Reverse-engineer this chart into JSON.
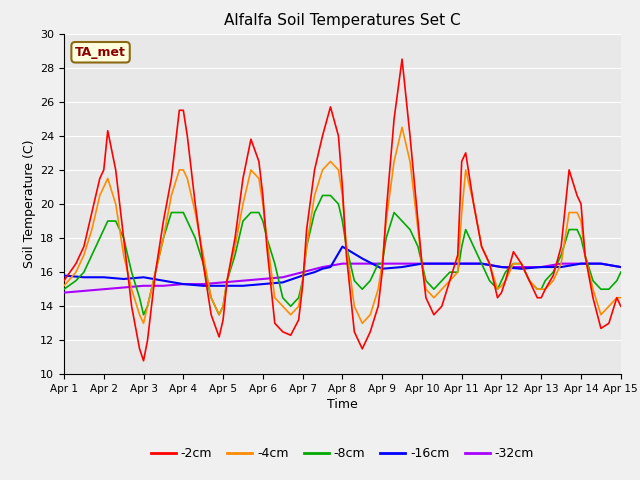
{
  "title": "Alfalfa Soil Temperatures Set C",
  "xlabel": "Time",
  "ylabel": "Soil Temperature (C)",
  "ylim": [
    10,
    30
  ],
  "xlim": [
    0,
    14
  ],
  "xtick_labels": [
    "Apr 1",
    "Apr 2",
    "Apr 3",
    "Apr 4",
    "Apr 5",
    "Apr 6",
    "Apr 7",
    "Apr 8",
    "Apr 9",
    "Apr 10",
    "Apr 11",
    "Apr 12",
    "Apr 13",
    "Apr 14",
    "Apr 15"
  ],
  "xtick_positions": [
    0,
    1,
    2,
    3,
    4,
    5,
    6,
    7,
    8,
    9,
    10,
    11,
    12,
    13,
    14
  ],
  "ytick_positions": [
    10,
    12,
    14,
    16,
    18,
    20,
    22,
    24,
    26,
    28,
    30
  ],
  "annotation_text": "TA_met",
  "annotation_color": "#8B0000",
  "annotation_bg": "#FFFFDD",
  "series": {
    "2cm": {
      "color": "#FF0000",
      "linewidth": 1.2,
      "x": [
        0.0,
        0.3,
        0.5,
        0.7,
        0.9,
        1.0,
        1.1,
        1.3,
        1.5,
        1.7,
        1.9,
        2.0,
        2.1,
        2.3,
        2.5,
        2.7,
        2.9,
        3.0,
        3.1,
        3.3,
        3.5,
        3.7,
        3.9,
        4.0,
        4.1,
        4.3,
        4.5,
        4.7,
        4.9,
        5.0,
        5.1,
        5.3,
        5.5,
        5.7,
        5.9,
        6.0,
        6.1,
        6.3,
        6.5,
        6.7,
        6.9,
        7.0,
        7.1,
        7.3,
        7.5,
        7.7,
        7.9,
        8.0,
        8.1,
        8.3,
        8.5,
        8.7,
        8.9,
        9.0,
        9.1,
        9.3,
        9.5,
        9.7,
        9.9,
        10.0,
        10.1,
        10.3,
        10.5,
        10.7,
        10.9,
        11.0,
        11.1,
        11.3,
        11.5,
        11.7,
        11.9,
        12.0,
        12.1,
        12.3,
        12.5,
        12.7,
        12.9,
        13.0,
        13.1,
        13.3,
        13.5,
        13.7,
        13.9,
        14.0
      ],
      "y": [
        15.5,
        16.5,
        17.5,
        19.5,
        21.5,
        22.0,
        24.3,
        22.0,
        18.0,
        14.0,
        11.5,
        10.8,
        12.0,
        16.0,
        19.0,
        21.5,
        25.5,
        25.5,
        24.0,
        20.0,
        16.5,
        13.5,
        12.2,
        13.2,
        15.5,
        18.0,
        21.5,
        23.8,
        22.5,
        20.5,
        17.5,
        13.0,
        12.5,
        12.3,
        13.2,
        15.2,
        18.5,
        22.0,
        24.0,
        25.7,
        24.0,
        21.0,
        17.0,
        12.5,
        11.5,
        12.5,
        14.0,
        16.0,
        19.5,
        25.0,
        28.5,
        24.0,
        19.0,
        16.5,
        14.5,
        13.5,
        14.0,
        15.5,
        17.0,
        22.5,
        23.0,
        20.0,
        17.5,
        16.5,
        14.5,
        14.8,
        15.5,
        17.2,
        16.5,
        15.5,
        14.5,
        14.5,
        15.0,
        15.8,
        17.5,
        22.0,
        20.5,
        20.0,
        17.0,
        14.5,
        12.7,
        13.0,
        14.5,
        14.0
      ]
    },
    "4cm": {
      "color": "#FF8C00",
      "linewidth": 1.2,
      "x": [
        0.0,
        0.3,
        0.5,
        0.7,
        0.9,
        1.0,
        1.1,
        1.3,
        1.5,
        1.7,
        1.9,
        2.0,
        2.1,
        2.3,
        2.5,
        2.7,
        2.9,
        3.0,
        3.1,
        3.3,
        3.5,
        3.7,
        3.9,
        4.0,
        4.1,
        4.3,
        4.5,
        4.7,
        4.9,
        5.0,
        5.1,
        5.3,
        5.5,
        5.7,
        5.9,
        6.0,
        6.1,
        6.3,
        6.5,
        6.7,
        6.9,
        7.0,
        7.1,
        7.3,
        7.5,
        7.7,
        7.9,
        8.0,
        8.1,
        8.3,
        8.5,
        8.7,
        8.9,
        9.0,
        9.1,
        9.3,
        9.5,
        9.7,
        9.9,
        10.0,
        10.1,
        10.3,
        10.5,
        10.7,
        10.9,
        11.0,
        11.1,
        11.3,
        11.5,
        11.7,
        11.9,
        12.0,
        12.1,
        12.3,
        12.5,
        12.7,
        12.9,
        13.0,
        13.1,
        13.3,
        13.5,
        13.7,
        13.9,
        14.0
      ],
      "y": [
        15.2,
        16.0,
        17.0,
        18.5,
        20.5,
        21.0,
        21.5,
        20.0,
        17.0,
        15.0,
        13.5,
        13.0,
        14.0,
        16.0,
        18.0,
        20.5,
        22.0,
        22.0,
        21.5,
        19.5,
        17.0,
        14.5,
        13.5,
        14.0,
        15.5,
        17.5,
        20.0,
        22.0,
        21.5,
        20.0,
        18.0,
        14.5,
        14.0,
        13.5,
        14.0,
        15.5,
        17.5,
        20.5,
        22.0,
        22.5,
        22.0,
        20.5,
        17.5,
        14.0,
        13.0,
        13.5,
        15.0,
        16.5,
        19.0,
        22.5,
        24.5,
        22.5,
        18.5,
        16.5,
        15.0,
        14.5,
        15.0,
        15.5,
        16.0,
        19.5,
        22.0,
        20.0,
        17.5,
        16.5,
        15.0,
        15.2,
        15.5,
        16.5,
        16.5,
        15.5,
        15.0,
        15.0,
        15.0,
        15.5,
        16.5,
        19.5,
        19.5,
        19.0,
        17.0,
        15.0,
        13.5,
        14.0,
        14.5,
        14.5
      ]
    },
    "8cm": {
      "color": "#00AA00",
      "linewidth": 1.2,
      "x": [
        0.0,
        0.3,
        0.5,
        0.7,
        0.9,
        1.0,
        1.1,
        1.3,
        1.5,
        1.7,
        1.9,
        2.0,
        2.1,
        2.3,
        2.5,
        2.7,
        2.9,
        3.0,
        3.1,
        3.3,
        3.5,
        3.7,
        3.9,
        4.0,
        4.1,
        4.3,
        4.5,
        4.7,
        4.9,
        5.0,
        5.1,
        5.3,
        5.5,
        5.7,
        5.9,
        6.0,
        6.1,
        6.3,
        6.5,
        6.7,
        6.9,
        7.0,
        7.1,
        7.3,
        7.5,
        7.7,
        7.9,
        8.0,
        8.1,
        8.3,
        8.5,
        8.7,
        8.9,
        9.0,
        9.1,
        9.3,
        9.5,
        9.7,
        9.9,
        10.0,
        10.1,
        10.3,
        10.5,
        10.7,
        10.9,
        11.0,
        11.1,
        11.3,
        11.5,
        11.7,
        11.9,
        12.0,
        12.1,
        12.3,
        12.5,
        12.7,
        12.9,
        13.0,
        13.1,
        13.3,
        13.5,
        13.7,
        13.9,
        14.0
      ],
      "y": [
        15.0,
        15.5,
        16.0,
        17.0,
        18.0,
        18.5,
        19.0,
        19.0,
        18.0,
        16.0,
        14.5,
        13.5,
        14.0,
        16.0,
        18.0,
        19.5,
        19.5,
        19.5,
        19.0,
        18.0,
        16.5,
        14.5,
        13.5,
        14.0,
        15.5,
        17.0,
        19.0,
        19.5,
        19.5,
        19.0,
        18.0,
        16.5,
        14.5,
        14.0,
        14.5,
        15.5,
        17.5,
        19.5,
        20.5,
        20.5,
        20.0,
        19.0,
        17.5,
        15.5,
        15.0,
        15.5,
        16.5,
        16.5,
        18.0,
        19.5,
        19.0,
        18.5,
        17.5,
        16.5,
        15.5,
        15.0,
        15.5,
        16.0,
        16.0,
        17.5,
        18.5,
        17.5,
        16.5,
        15.5,
        15.0,
        15.5,
        16.0,
        16.5,
        16.5,
        15.5,
        15.0,
        15.0,
        15.5,
        16.0,
        17.0,
        18.5,
        18.5,
        18.0,
        17.0,
        15.5,
        15.0,
        15.0,
        15.5,
        16.0
      ]
    },
    "16cm": {
      "color": "#0000FF",
      "linewidth": 1.5,
      "x": [
        0.0,
        0.5,
        1.0,
        1.5,
        2.0,
        2.5,
        3.0,
        3.5,
        4.0,
        4.5,
        5.0,
        5.5,
        6.0,
        6.3,
        6.5,
        6.7,
        7.0,
        7.5,
        8.0,
        8.5,
        9.0,
        9.5,
        10.0,
        10.5,
        11.0,
        11.5,
        12.0,
        12.5,
        13.0,
        13.5,
        14.0
      ],
      "y": [
        15.8,
        15.7,
        15.7,
        15.6,
        15.7,
        15.5,
        15.3,
        15.2,
        15.2,
        15.2,
        15.3,
        15.4,
        15.8,
        16.0,
        16.2,
        16.3,
        17.5,
        16.8,
        16.2,
        16.3,
        16.5,
        16.5,
        16.5,
        16.5,
        16.3,
        16.2,
        16.3,
        16.3,
        16.5,
        16.5,
        16.3
      ]
    },
    "32cm": {
      "color": "#AA00FF",
      "linewidth": 1.5,
      "x": [
        0.0,
        0.5,
        1.0,
        1.5,
        2.0,
        2.5,
        3.0,
        3.5,
        4.0,
        4.5,
        5.0,
        5.5,
        6.0,
        6.5,
        7.0,
        7.5,
        8.0,
        8.5,
        9.0,
        9.5,
        10.0,
        10.5,
        11.0,
        11.5,
        12.0,
        12.5,
        13.0,
        13.5,
        14.0
      ],
      "y": [
        14.8,
        14.9,
        15.0,
        15.1,
        15.2,
        15.2,
        15.3,
        15.3,
        15.4,
        15.5,
        15.6,
        15.7,
        16.0,
        16.3,
        16.5,
        16.5,
        16.5,
        16.5,
        16.5,
        16.5,
        16.5,
        16.5,
        16.3,
        16.3,
        16.3,
        16.5,
        16.5,
        16.5,
        16.3
      ]
    }
  }
}
